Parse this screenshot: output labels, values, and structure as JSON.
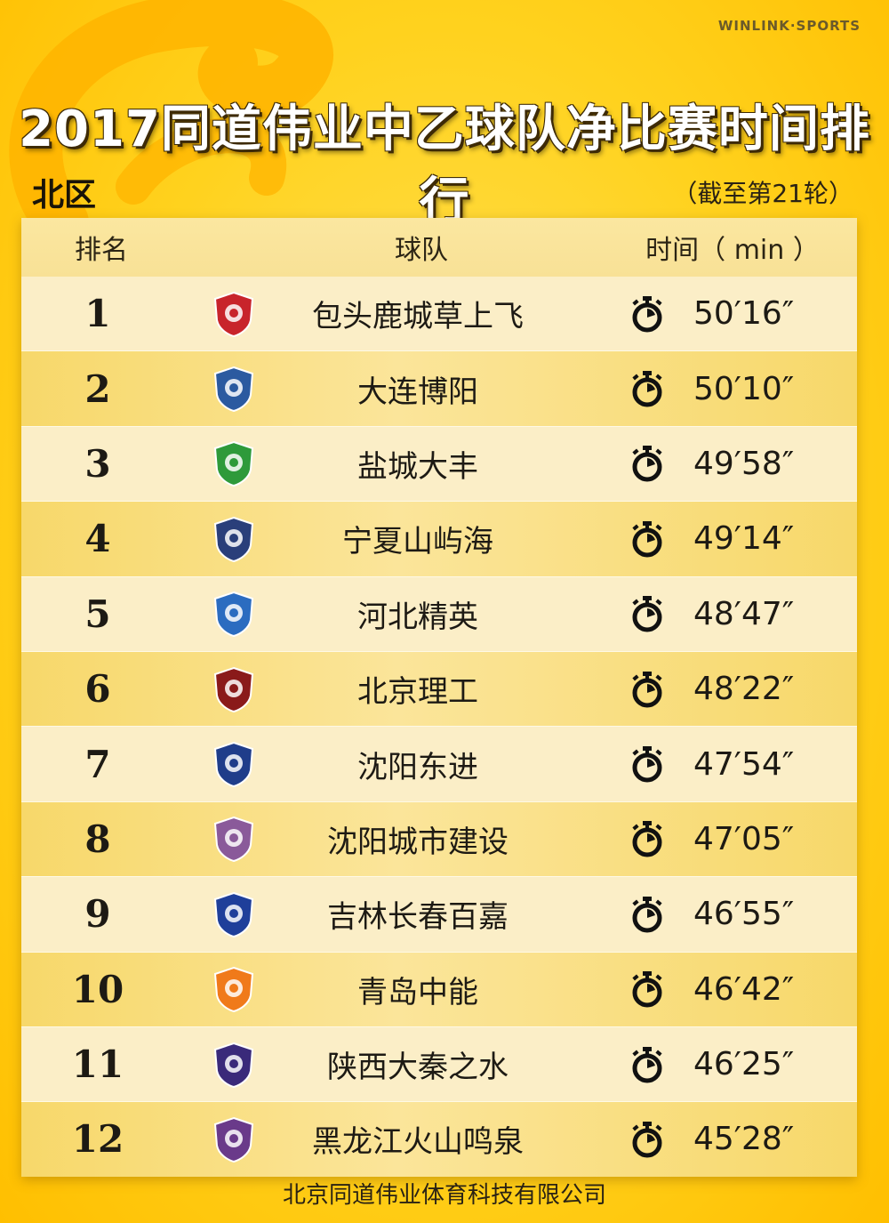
{
  "brand": "WINLINK·SPORTS",
  "title": "2017同道伟业中乙球队净比赛时间排行",
  "region": "北区",
  "as_of": "（截至第21轮）",
  "headers": {
    "rank": "排名",
    "team": "球队",
    "time": "时间（ min ）"
  },
  "rows": [
    {
      "rank": "1",
      "team": "包头鹿城草上飞",
      "time": "50′16″",
      "logo_color": "#c8242b",
      "logo": "shield-red-icon"
    },
    {
      "rank": "2",
      "team": "大连博阳",
      "time": "50′10″",
      "logo_color": "#2b5aa0",
      "logo": "round-blue-red-icon"
    },
    {
      "rank": "3",
      "team": "盐城大丰",
      "time": "49′58″",
      "logo_color": "#2e9a3a",
      "logo": "shield-green-icon"
    },
    {
      "rank": "4",
      "team": "宁夏山屿海",
      "time": "49′14″",
      "logo_color": "#2a3f7a",
      "logo": "crest-navy-icon"
    },
    {
      "rank": "5",
      "team": "河北精英",
      "time": "48′47″",
      "logo_color": "#2b6cc0",
      "logo": "shield-blue-icon"
    },
    {
      "rank": "6",
      "team": "北京理工",
      "time": "48′22″",
      "logo_color": "#8a1a1a",
      "logo": "round-maroon-icon"
    },
    {
      "rank": "7",
      "team": "沈阳东进",
      "time": "47′54″",
      "logo_color": "#1f3d8a",
      "logo": "shield-navy-icon"
    },
    {
      "rank": "8",
      "team": "沈阳城市建设",
      "time": "47′05″",
      "logo_color": "#8a5a9a",
      "logo": "shield-purple-icon"
    },
    {
      "rank": "9",
      "team": "吉林长春百嘉",
      "time": "46′55″",
      "logo_color": "#1f3f9a",
      "logo": "round-blue-icon"
    },
    {
      "rank": "10",
      "team": "青岛中能",
      "time": "46′42″",
      "logo_color": "#f07a1a",
      "logo": "shield-orange-icon"
    },
    {
      "rank": "11",
      "team": "陕西大秦之水",
      "time": "46′25″",
      "logo_color": "#3a2a7a",
      "logo": "shield-wolf-icon"
    },
    {
      "rank": "12",
      "team": "黑龙江火山鸣泉",
      "time": "45′28″",
      "logo_color": "#6a3a8a",
      "logo": "crest-purple-icon"
    }
  ],
  "footer": "北京同道伟业体育科技有限公司"
}
